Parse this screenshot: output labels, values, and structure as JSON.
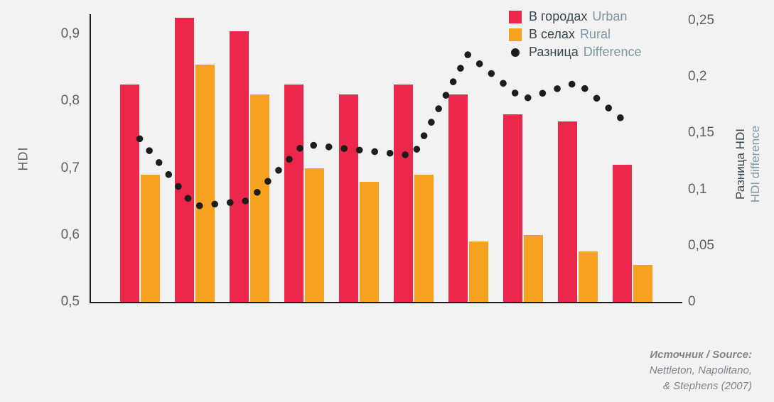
{
  "chart_data": {
    "type": "bar",
    "title": "",
    "categories": [
      "",
      "",
      "",
      "",
      "",
      "",
      "",
      "",
      "",
      ""
    ],
    "series": [
      {
        "name": "В городах Urban",
        "kind": "bar",
        "axis": "left",
        "color": "#ed274b",
        "values": [
          0.825,
          0.925,
          0.905,
          0.825,
          0.81,
          0.825,
          0.81,
          0.78,
          0.77,
          0.705
        ]
      },
      {
        "name": "В селах Rural",
        "kind": "bar",
        "axis": "left",
        "color": "#f6a120",
        "values": [
          0.69,
          0.855,
          0.81,
          0.7,
          0.68,
          0.69,
          0.59,
          0.6,
          0.575,
          0.555
        ]
      },
      {
        "name": "Разница Difference",
        "kind": "dotted-line",
        "axis": "right",
        "color": "#1d1d1b",
        "values": [
          0.145,
          0.085,
          0.09,
          0.14,
          0.135,
          0.13,
          0.22,
          0.18,
          0.195,
          0.155
        ]
      }
    ],
    "left_axis": {
      "label": "HDI",
      "min": 0.5,
      "max": 0.93,
      "ticks": [
        {
          "label": "0,9",
          "value": 0.9
        },
        {
          "label": "0,8",
          "value": 0.8
        },
        {
          "label": "0,7",
          "value": 0.7
        },
        {
          "label": "0,6",
          "value": 0.6
        },
        {
          "label": "0,5",
          "value": 0.5
        }
      ]
    },
    "right_axis": {
      "label_ru": "Разница HDI",
      "label_en": "HDI difference",
      "min": 0,
      "max": 0.25,
      "ticks": [
        {
          "label": "0,25",
          "value": 0.25
        },
        {
          "label": "0,2",
          "value": 0.2
        },
        {
          "label": "0,15",
          "value": 0.15
        },
        {
          "label": "0,1",
          "value": 0.1
        },
        {
          "label": "0,05",
          "value": 0.05
        },
        {
          "label": "0",
          "value": 0
        }
      ]
    },
    "grid": false,
    "legend_position": "top-right"
  },
  "legend": {
    "items": [
      {
        "label_ru": "В городах",
        "label_en": "Urban",
        "swatch": "red-square",
        "color": "#ed274b"
      },
      {
        "label_ru": "В селах",
        "label_en": "Rural",
        "swatch": "orange-square",
        "color": "#f6a120"
      },
      {
        "label_ru": "Разница",
        "label_en": "Difference",
        "swatch": "black-dot",
        "color": "#1d1d1b"
      }
    ]
  },
  "source": {
    "line1": "Источник / Source:",
    "line2": "Nettleton, Napolitano,",
    "line3": "& Stephens (2007)"
  },
  "colors": {
    "background": "#f2f2f2",
    "axis": "#1d1d1b",
    "tick_text": "#5a6266",
    "legend_main": "#37474f",
    "legend_secondary": "#7f97a4",
    "source_text": "#7e858c"
  }
}
